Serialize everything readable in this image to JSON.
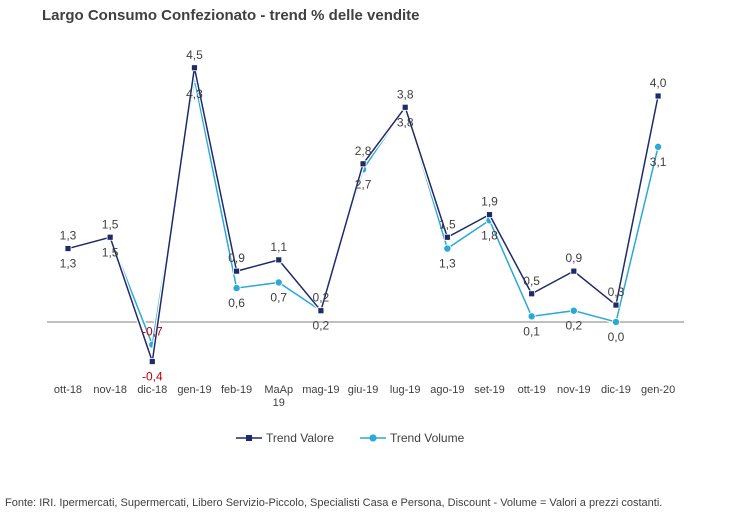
{
  "chart_data": {
    "type": "line",
    "title": "Largo Consumo Confezionato - trend % delle vendite",
    "categories": [
      "ott-18",
      "nov-18",
      "dic-18",
      "gen-19",
      "feb-19",
      "MaAp 19",
      "mag-19",
      "giu-19",
      "lug-19",
      "ago-19",
      "set-19",
      "ott-19",
      "nov-19",
      "dic-19",
      "gen-20"
    ],
    "series": [
      {
        "name": "Trend Valore",
        "color": "#1f2a6b",
        "marker": "square",
        "values": [
          1.3,
          1.5,
          -0.7,
          4.5,
          0.9,
          1.1,
          0.2,
          2.8,
          3.8,
          1.5,
          1.9,
          0.5,
          0.9,
          0.3,
          4.0
        ],
        "labels": [
          "1,3",
          "1,5",
          "-0,7",
          "4,5",
          "0,9",
          "1,1",
          "0,2",
          "2,8",
          "3,8",
          "1,5",
          "1,9",
          "0,5",
          "0,9",
          "0,3",
          "4,0"
        ]
      },
      {
        "name": "Trend Volume",
        "color": "#2aa9d6",
        "marker": "circle",
        "values": [
          1.3,
          1.5,
          -0.4,
          4.3,
          0.6,
          0.7,
          0.2,
          2.7,
          3.8,
          1.3,
          1.8,
          0.1,
          0.2,
          0.0,
          3.1
        ],
        "labels": [
          "1,3",
          "1,5",
          "-0,4",
          "4,3",
          "0,6",
          "0,7",
          "0,2",
          "2,7",
          "3,8",
          "1,3",
          "1,8",
          "0,1",
          "0,2",
          "0,0",
          "3,1"
        ]
      }
    ],
    "ylim": [
      -0.9,
      4.7
    ],
    "grid": false,
    "legend_position": "bottom",
    "negative_label_color": "#c00000",
    "footer": "Fonte: IRI. Ipermercati, Supermercati, Libero Servizio-Piccolo,  Specialisti Casa e Persona, Discount -  Volume =  Valori a prezzi  costanti."
  }
}
